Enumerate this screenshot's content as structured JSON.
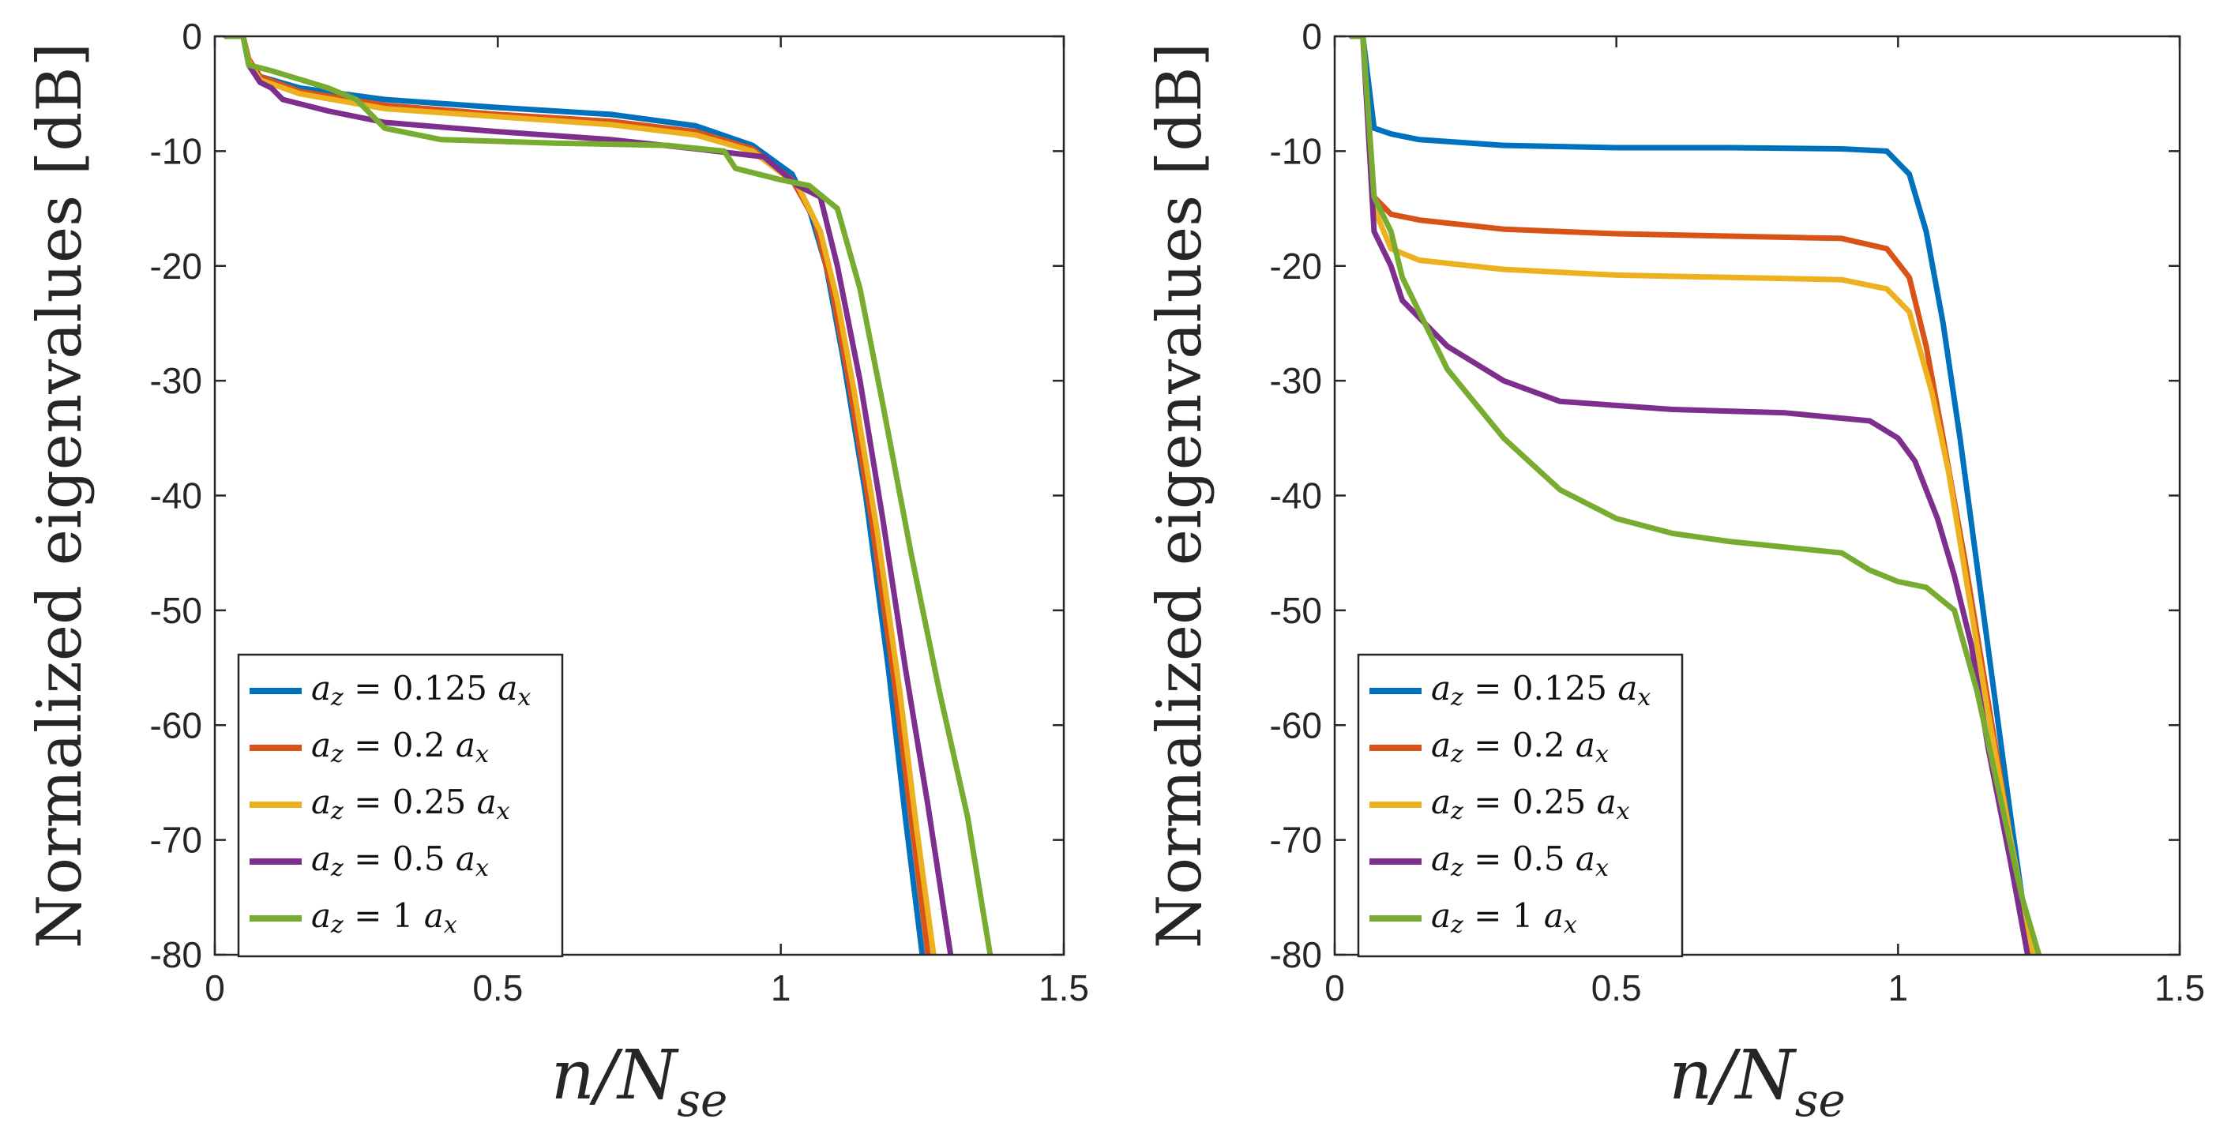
{
  "chart_data": [
    {
      "type": "line",
      "xlabel": "n/N_se",
      "ylabel": "Normalized eigenvalues [dB]",
      "xlim": [
        0,
        1.5
      ],
      "ylim": [
        -80,
        0
      ],
      "xticks": [
        "0",
        "0.5",
        "1",
        "1.5"
      ],
      "yticks": [
        "0",
        "-10",
        "-20",
        "-30",
        "-40",
        "-50",
        "-60",
        "-70",
        "-80"
      ],
      "legend_position": "bottom-left",
      "series": [
        {
          "name": "a_z = 0.125 a_x",
          "color": "#0072BD",
          "points": [
            [
              0.02,
              0
            ],
            [
              0.05,
              0
            ],
            [
              0.06,
              -2
            ],
            [
              0.08,
              -3.5
            ],
            [
              0.15,
              -4.5
            ],
            [
              0.3,
              -5.5
            ],
            [
              0.5,
              -6.2
            ],
            [
              0.7,
              -6.8
            ],
            [
              0.85,
              -7.8
            ],
            [
              0.95,
              -9.5
            ],
            [
              1.02,
              -12
            ],
            [
              1.05,
              -15
            ],
            [
              1.08,
              -20
            ],
            [
              1.11,
              -28
            ],
            [
              1.15,
              -40
            ],
            [
              1.19,
              -55
            ],
            [
              1.22,
              -68
            ],
            [
              1.25,
              -80
            ]
          ]
        },
        {
          "name": "a_z = 0.2 a_x",
          "color": "#D95319",
          "points": [
            [
              0.02,
              0
            ],
            [
              0.05,
              0
            ],
            [
              0.06,
              -2
            ],
            [
              0.08,
              -3.5
            ],
            [
              0.15,
              -4.8
            ],
            [
              0.3,
              -6
            ],
            [
              0.5,
              -6.8
            ],
            [
              0.7,
              -7.4
            ],
            [
              0.85,
              -8.3
            ],
            [
              0.95,
              -9.8
            ],
            [
              1.02,
              -12.5
            ],
            [
              1.06,
              -16
            ],
            [
              1.09,
              -22
            ],
            [
              1.12,
              -30
            ],
            [
              1.16,
              -42
            ],
            [
              1.2,
              -56
            ],
            [
              1.23,
              -68
            ],
            [
              1.26,
              -80
            ]
          ]
        },
        {
          "name": "a_z = 0.25 a_x",
          "color": "#EDB120",
          "points": [
            [
              0.02,
              0
            ],
            [
              0.05,
              0
            ],
            [
              0.06,
              -2.2
            ],
            [
              0.08,
              -3.8
            ],
            [
              0.15,
              -5
            ],
            [
              0.3,
              -6.3
            ],
            [
              0.5,
              -7
            ],
            [
              0.7,
              -7.7
            ],
            [
              0.85,
              -8.6
            ],
            [
              0.95,
              -10
            ],
            [
              1.03,
              -13
            ],
            [
              1.07,
              -17
            ],
            [
              1.1,
              -23
            ],
            [
              1.13,
              -31
            ],
            [
              1.17,
              -43
            ],
            [
              1.21,
              -57
            ],
            [
              1.24,
              -69
            ],
            [
              1.27,
              -80
            ]
          ]
        },
        {
          "name": "a_z = 0.5 a_x",
          "color": "#7E2F8E",
          "points": [
            [
              0.02,
              0
            ],
            [
              0.05,
              0
            ],
            [
              0.06,
              -2.5
            ],
            [
              0.08,
              -4
            ],
            [
              0.1,
              -4.5
            ],
            [
              0.12,
              -5.5
            ],
            [
              0.2,
              -6.5
            ],
            [
              0.3,
              -7.5
            ],
            [
              0.5,
              -8.3
            ],
            [
              0.7,
              -9
            ],
            [
              0.85,
              -9.8
            ],
            [
              0.97,
              -10.5
            ],
            [
              1.03,
              -13
            ],
            [
              1.07,
              -14
            ],
            [
              1.1,
              -20
            ],
            [
              1.14,
              -30
            ],
            [
              1.18,
              -42
            ],
            [
              1.22,
              -55
            ],
            [
              1.26,
              -67
            ],
            [
              1.3,
              -80
            ]
          ]
        },
        {
          "name": "a_z = 1 a_x",
          "color": "#77AC30",
          "points": [
            [
              0.02,
              0
            ],
            [
              0.05,
              0
            ],
            [
              0.06,
              -2.5
            ],
            [
              0.1,
              -3
            ],
            [
              0.2,
              -4.5
            ],
            [
              0.25,
              -5.5
            ],
            [
              0.3,
              -8
            ],
            [
              0.4,
              -9
            ],
            [
              0.6,
              -9.3
            ],
            [
              0.8,
              -9.5
            ],
            [
              0.9,
              -10
            ],
            [
              0.92,
              -11.5
            ],
            [
              1.0,
              -12.5
            ],
            [
              1.05,
              -13
            ],
            [
              1.1,
              -15
            ],
            [
              1.14,
              -22
            ],
            [
              1.18,
              -32
            ],
            [
              1.23,
              -45
            ],
            [
              1.28,
              -57
            ],
            [
              1.33,
              -68
            ],
            [
              1.37,
              -80
            ]
          ]
        }
      ]
    },
    {
      "type": "line",
      "xlabel": "n/N_se",
      "ylabel": "Normalized eigenvalues [dB]",
      "xlim": [
        0,
        1.5
      ],
      "ylim": [
        -80,
        0
      ],
      "xticks": [
        "0",
        "0.5",
        "1",
        "1.5"
      ],
      "yticks": [
        "0",
        "-10",
        "-20",
        "-30",
        "-40",
        "-50",
        "-60",
        "-70",
        "-80"
      ],
      "legend_position": "bottom-left",
      "series": [
        {
          "name": "a_z = 0.125 a_x",
          "color": "#0072BD",
          "points": [
            [
              0.03,
              0
            ],
            [
              0.05,
              0
            ],
            [
              0.07,
              -8
            ],
            [
              0.1,
              -8.5
            ],
            [
              0.15,
              -9
            ],
            [
              0.3,
              -9.5
            ],
            [
              0.5,
              -9.7
            ],
            [
              0.7,
              -9.7
            ],
            [
              0.9,
              -9.8
            ],
            [
              0.98,
              -10
            ],
            [
              1.02,
              -12
            ],
            [
              1.05,
              -17
            ],
            [
              1.08,
              -25
            ],
            [
              1.11,
              -35
            ],
            [
              1.14,
              -46
            ],
            [
              1.17,
              -57
            ],
            [
              1.2,
              -68
            ],
            [
              1.22,
              -75
            ],
            [
              1.24,
              -80
            ]
          ]
        },
        {
          "name": "a_z = 0.2 a_x",
          "color": "#D95319",
          "points": [
            [
              0.03,
              0
            ],
            [
              0.05,
              0
            ],
            [
              0.07,
              -14
            ],
            [
              0.1,
              -15.5
            ],
            [
              0.15,
              -16
            ],
            [
              0.3,
              -16.8
            ],
            [
              0.5,
              -17.2
            ],
            [
              0.7,
              -17.4
            ],
            [
              0.9,
              -17.6
            ],
            [
              0.98,
              -18.5
            ],
            [
              1.02,
              -21
            ],
            [
              1.05,
              -27
            ],
            [
              1.08,
              -35
            ],
            [
              1.12,
              -46
            ],
            [
              1.16,
              -58
            ],
            [
              1.2,
              -70
            ],
            [
              1.23,
              -78
            ],
            [
              1.24,
              -80
            ]
          ]
        },
        {
          "name": "a_z = 0.25 a_x",
          "color": "#EDB120",
          "points": [
            [
              0.03,
              0
            ],
            [
              0.05,
              0
            ],
            [
              0.07,
              -15
            ],
            [
              0.1,
              -18.5
            ],
            [
              0.15,
              -19.5
            ],
            [
              0.3,
              -20.3
            ],
            [
              0.5,
              -20.8
            ],
            [
              0.7,
              -21
            ],
            [
              0.9,
              -21.2
            ],
            [
              0.98,
              -22
            ],
            [
              1.02,
              -24
            ],
            [
              1.06,
              -31
            ],
            [
              1.09,
              -38
            ],
            [
              1.12,
              -47
            ],
            [
              1.16,
              -59
            ],
            [
              1.2,
              -70
            ],
            [
              1.24,
              -80
            ]
          ]
        },
        {
          "name": "a_z = 0.5 a_x",
          "color": "#7E2F8E",
          "points": [
            [
              0.03,
              0
            ],
            [
              0.05,
              0
            ],
            [
              0.07,
              -17
            ],
            [
              0.1,
              -20
            ],
            [
              0.12,
              -23
            ],
            [
              0.2,
              -27
            ],
            [
              0.3,
              -30
            ],
            [
              0.4,
              -31.8
            ],
            [
              0.6,
              -32.5
            ],
            [
              0.8,
              -32.8
            ],
            [
              0.95,
              -33.5
            ],
            [
              1.0,
              -35
            ],
            [
              1.03,
              -37
            ],
            [
              1.07,
              -42
            ],
            [
              1.1,
              -47
            ],
            [
              1.13,
              -53
            ],
            [
              1.16,
              -62
            ],
            [
              1.2,
              -72
            ],
            [
              1.23,
              -80
            ]
          ]
        },
        {
          "name": "a_z = 1 a_x",
          "color": "#77AC30",
          "points": [
            [
              0.03,
              0
            ],
            [
              0.05,
              0
            ],
            [
              0.07,
              -14
            ],
            [
              0.1,
              -17
            ],
            [
              0.12,
              -21
            ],
            [
              0.2,
              -29
            ],
            [
              0.3,
              -35
            ],
            [
              0.4,
              -39.5
            ],
            [
              0.5,
              -42
            ],
            [
              0.6,
              -43.3
            ],
            [
              0.7,
              -44
            ],
            [
              0.8,
              -44.5
            ],
            [
              0.9,
              -45
            ],
            [
              0.95,
              -46.5
            ],
            [
              1.0,
              -47.5
            ],
            [
              1.05,
              -48
            ],
            [
              1.1,
              -50
            ],
            [
              1.14,
              -57
            ],
            [
              1.18,
              -66
            ],
            [
              1.22,
              -75
            ],
            [
              1.25,
              -80
            ]
          ]
        }
      ]
    }
  ]
}
